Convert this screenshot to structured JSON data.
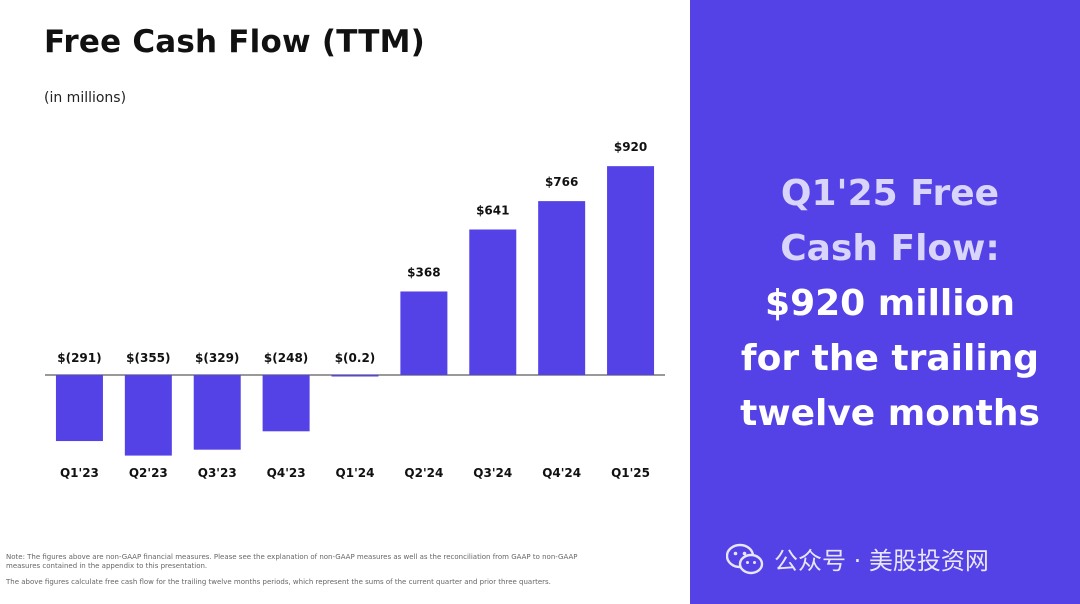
{
  "chart_data": {
    "type": "bar",
    "title": "Free Cash Flow (TTM)",
    "subtitle": "(in millions)",
    "categories": [
      "Q1'23",
      "Q2'23",
      "Q3'23",
      "Q4'23",
      "Q1'24",
      "Q2'24",
      "Q3'24",
      "Q4'24",
      "Q1'25"
    ],
    "values": [
      -291,
      -355,
      -329,
      -248,
      -0.2,
      368,
      641,
      766,
      920
    ],
    "value_labels": [
      "$(291)",
      "$(355)",
      "$(329)",
      "$(248)",
      "$(0.2)",
      "$368",
      "$641",
      "$766",
      "$920"
    ],
    "ylim": [
      -380,
      960
    ],
    "bar_color": "#5442e6",
    "grid": false,
    "legend": "none"
  },
  "notes": [
    "Note: The figures above are non-GAAP financial measures. Please see the explanation of non-GAAP measures as well as the reconciliation from GAAP to non-GAAP measures contained in the appendix to this presentation.",
    "The above figures calculate free cash flow for the trailing twelve months periods, which represent the sums of the current quarter and prior three quarters."
  ],
  "panel": {
    "lines": [
      "Q1'25 Free",
      "Cash Flow:",
      "$920 million",
      "for the trailing",
      "twelve months"
    ],
    "background": "#5442e6"
  },
  "watermark": {
    "icon": "wechat-icon",
    "text": "公众号 · 美股投资网"
  }
}
